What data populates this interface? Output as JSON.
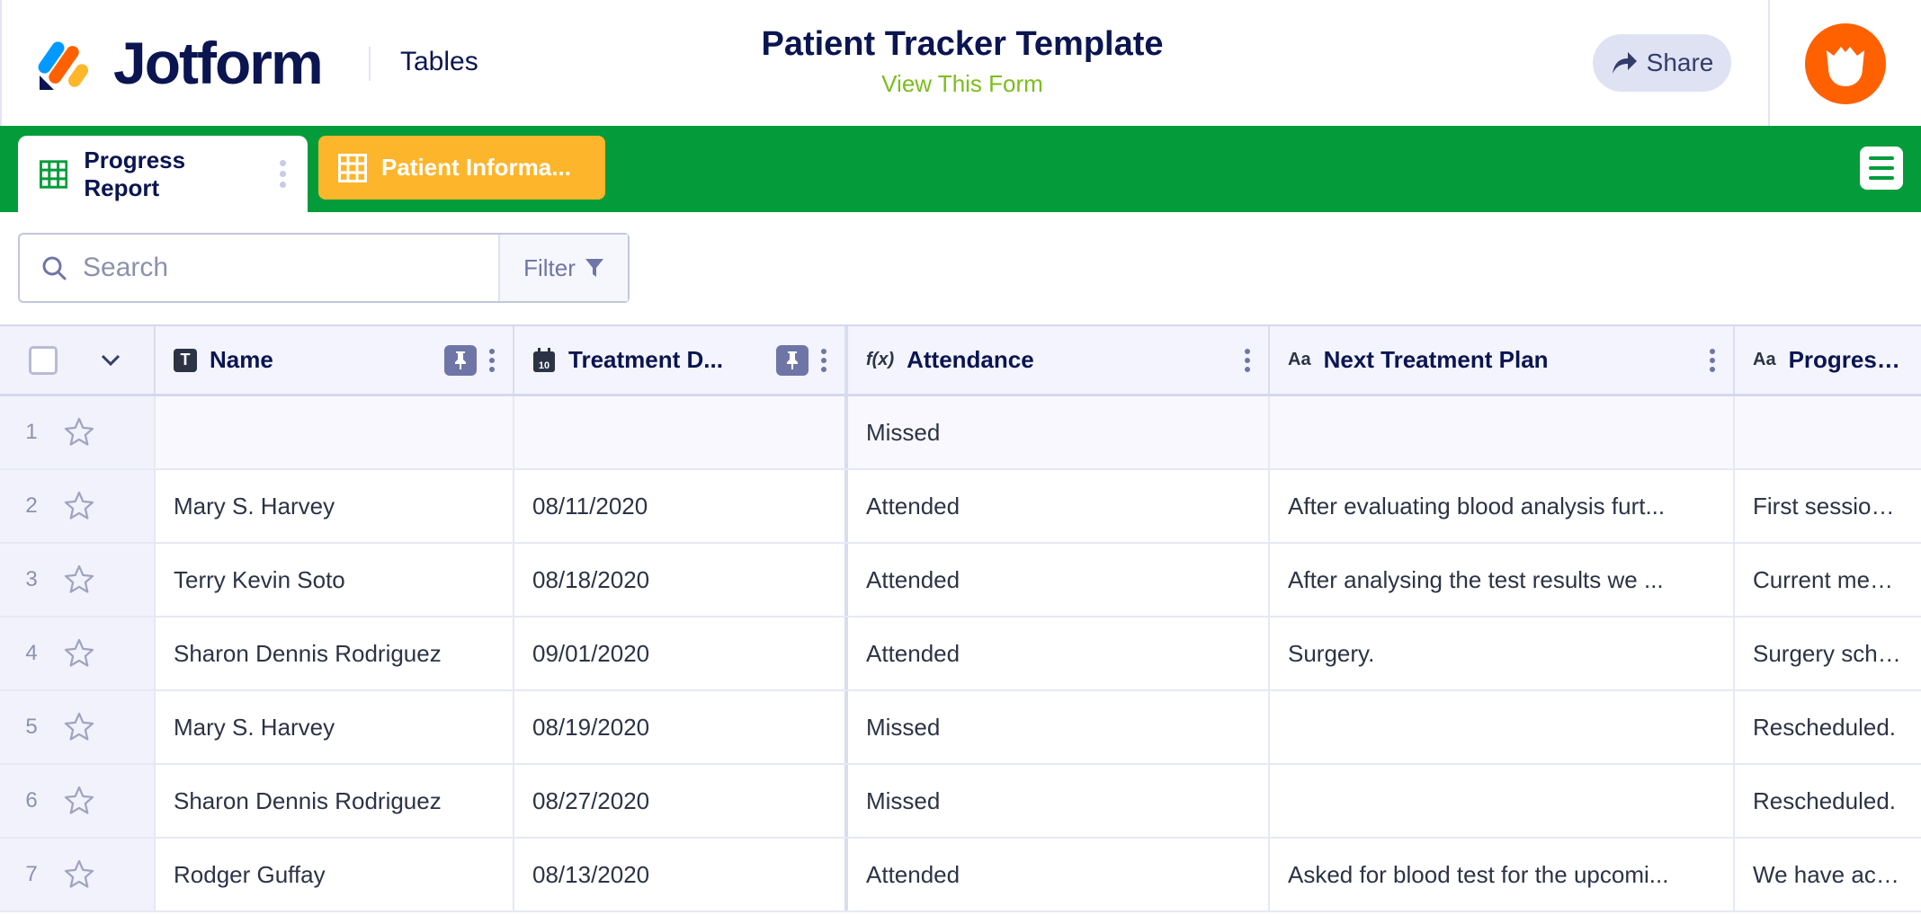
{
  "header": {
    "brand": "Jotform",
    "product": "Tables",
    "title": "Patient Tracker Template",
    "view_form_link": "View This Form",
    "share_label": "Share",
    "avatar_icon": "podo-avatar-icon"
  },
  "tabs": [
    {
      "label": "Progress Report",
      "active": true,
      "icon": "table-icon"
    },
    {
      "label": "Patient Informa...",
      "active": false,
      "icon": "table-icon",
      "color": "#fdb52b"
    }
  ],
  "toolbar": {
    "search_placeholder": "Search",
    "search_value": "",
    "filter_label": "Filter"
  },
  "colors": {
    "brand_green": "#049c3a",
    "tab_orange": "#fdb52b",
    "link_green": "#7cbd1c",
    "avatar_orange": "#ff6100",
    "navy": "#0a1551"
  },
  "table": {
    "columns": [
      {
        "label": "Name",
        "type_icon": "T",
        "pinned": true
      },
      {
        "label": "Treatment D...",
        "type_icon": "calendar",
        "pinned": true
      },
      {
        "label": "Attendance",
        "type_icon": "f(x)",
        "pinned": false
      },
      {
        "label": "Next Treatment Plan",
        "type_icon": "Aa",
        "pinned": false
      },
      {
        "label": "Progress N",
        "type_icon": "Aa",
        "pinned": false
      }
    ],
    "rows": [
      {
        "num": "1",
        "cells": [
          "",
          "",
          "Missed",
          "",
          ""
        ]
      },
      {
        "num": "2",
        "cells": [
          "Mary S. Harvey",
          "08/11/2020",
          "Attended",
          "After evaluating blood analysis furt...",
          "First session w"
        ]
      },
      {
        "num": "3",
        "cells": [
          "Terry Kevin Soto",
          "08/18/2020",
          "Attended",
          "After analysing the test results we ...",
          "Current medica"
        ]
      },
      {
        "num": "4",
        "cells": [
          "Sharon Dennis Rodriguez",
          "09/01/2020",
          "Attended",
          "Surgery.",
          "Surgery schedu"
        ]
      },
      {
        "num": "5",
        "cells": [
          "Mary S. Harvey",
          "08/19/2020",
          "Missed",
          "",
          "Rescheduled."
        ]
      },
      {
        "num": "6",
        "cells": [
          "Sharon Dennis Rodriguez",
          "08/27/2020",
          "Missed",
          "",
          "Rescheduled."
        ]
      },
      {
        "num": "7",
        "cells": [
          "Rodger Guffay",
          "08/13/2020",
          "Attended",
          "Asked for blood test for the upcomi...",
          "We have activa"
        ]
      }
    ]
  }
}
